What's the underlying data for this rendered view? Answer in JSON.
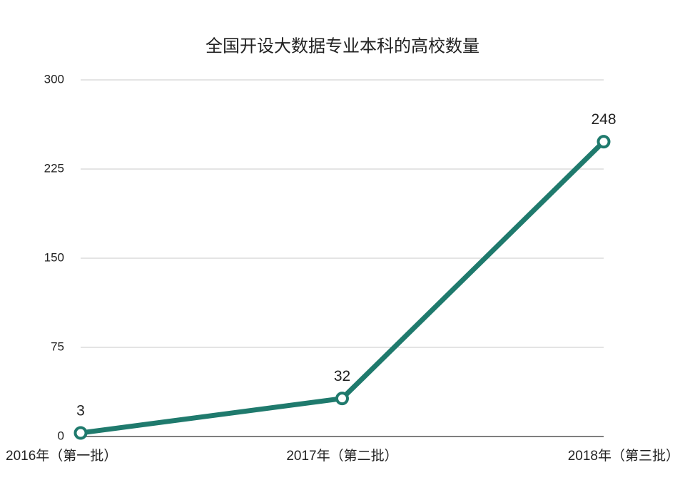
{
  "chart_data": {
    "type": "line",
    "title": "全国开设大数据专业本科的高校数量",
    "categories": [
      "2016年（第一批）",
      "2017年（第二批）",
      "2018年（第三批）"
    ],
    "values": [
      3,
      32,
      248
    ],
    "color": "#1f7a6d",
    "ylim": [
      0,
      300
    ],
    "yticks": [
      0,
      75,
      150,
      225,
      300
    ],
    "grid": true
  }
}
